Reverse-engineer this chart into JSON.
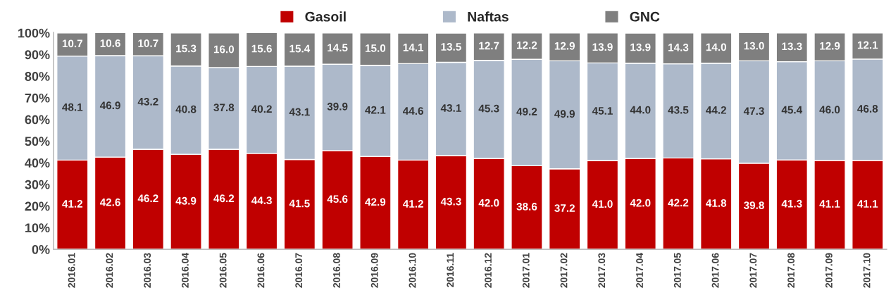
{
  "chart_data": {
    "type": "bar",
    "stacked": true,
    "legend": "top",
    "grid": false,
    "categories": [
      "2016.01",
      "2016.02",
      "2016.03",
      "2016.04",
      "2016.05",
      "2016.06",
      "2016.07",
      "2016.08",
      "2016.09",
      "2016.10",
      "2016.11",
      "2016.12",
      "2017.01",
      "2017.02",
      "2017.03",
      "2017.04",
      "2017.05",
      "2017.06",
      "2017.07",
      "2017.08",
      "2017.09",
      "2017.10"
    ],
    "series": [
      {
        "name": "Gasoil",
        "color": "#c00000",
        "values": [
          41.2,
          42.6,
          46.2,
          43.9,
          46.2,
          44.3,
          41.5,
          45.6,
          42.9,
          41.2,
          43.3,
          42.0,
          38.6,
          37.2,
          41.0,
          42.0,
          42.2,
          41.8,
          39.8,
          41.3,
          41.1,
          41.1
        ],
        "value_labels": [
          "41.2",
          "42.6",
          "46.2",
          "43.9",
          "46.2",
          "44.3",
          "41.5",
          "45.6",
          "42.9",
          "41.2",
          "43.3",
          "42.0",
          "38.6",
          "37.2",
          "41.0",
          "42.0",
          "42.2",
          "41.8",
          "39.8",
          "41.3",
          "41.1",
          "41.1"
        ]
      },
      {
        "name": "Naftas",
        "color": "#adb9ca",
        "values": [
          48.1,
          46.9,
          43.2,
          40.8,
          37.8,
          40.2,
          43.1,
          39.9,
          42.1,
          44.6,
          43.1,
          45.3,
          49.2,
          49.9,
          45.1,
          44.0,
          43.5,
          44.2,
          47.3,
          45.4,
          46.0,
          46.8
        ],
        "value_labels": [
          "48.1",
          "46.9",
          "43.2",
          "40.8",
          "37.8",
          "40.2",
          "43.1",
          "39.9",
          "42.1",
          "44.6",
          "43.1",
          "45.3",
          "49.2",
          "49.9",
          "45.1",
          "44.0",
          "43.5",
          "44.2",
          "47.3",
          "45.4",
          "46.0",
          "46.8"
        ]
      },
      {
        "name": "GNC",
        "color": "#7f7f7f",
        "values": [
          10.7,
          10.6,
          10.7,
          15.3,
          16.0,
          15.6,
          15.4,
          14.5,
          15.0,
          14.1,
          13.5,
          12.7,
          12.2,
          12.9,
          13.9,
          13.9,
          14.3,
          14.0,
          13.0,
          13.3,
          12.9,
          12.1
        ],
        "value_labels": [
          "10.7",
          "10.6",
          "10.7",
          "15.3",
          "16.0",
          "15.6",
          "15.4",
          "14.5",
          "15.0",
          "14.1",
          "13.5",
          "12.7",
          "12.2",
          "12.9",
          "13.9",
          "13.9",
          "14.3",
          "14.0",
          "13.0",
          "13.3",
          "12.9",
          "12.1"
        ]
      }
    ],
    "ylim": [
      0,
      100.2
    ],
    "yticks": [
      {
        "value": 0,
        "label": "0%"
      },
      {
        "value": 10,
        "label": "10%"
      },
      {
        "value": 20,
        "label": "20%"
      },
      {
        "value": 30,
        "label": "30%"
      },
      {
        "value": 40,
        "label": "40%"
      },
      {
        "value": 50,
        "label": "50%"
      },
      {
        "value": 60,
        "label": "60%"
      },
      {
        "value": 70,
        "label": "70%"
      },
      {
        "value": 80,
        "label": "80%"
      },
      {
        "value": 90,
        "label": "90%"
      },
      {
        "value": 100,
        "label": "100%"
      }
    ]
  }
}
